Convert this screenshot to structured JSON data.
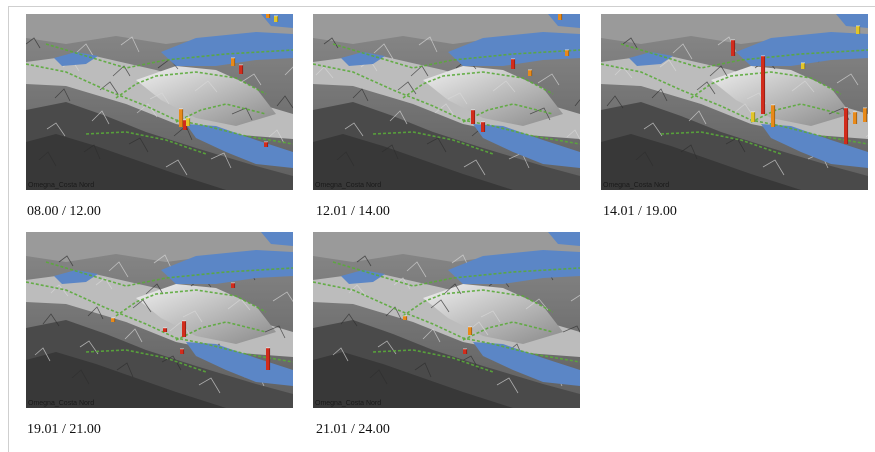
{
  "colors": {
    "lake": "#5b86c6",
    "road": "#5aaa3a",
    "bar_red": "#d22c1c",
    "bar_orange": "#e88a1a",
    "bar_yellow": "#e2c62a"
  },
  "panels": [
    {
      "caption": "08.00 / 12.00",
      "map_label": "Omegna_Costa Nord"
    },
    {
      "caption": "12.01 / 14.00",
      "map_label": "Omegna_Costa Nord"
    },
    {
      "caption": "14.01 / 19.00",
      "map_label": "Omegna_Costa Nord"
    },
    {
      "caption": "19.01 / 21.00",
      "map_label": "Omegna_Costa Nord"
    },
    {
      "caption": "21.01 / 24.00",
      "map_label": "Omegna_Costa Nord"
    }
  ]
}
